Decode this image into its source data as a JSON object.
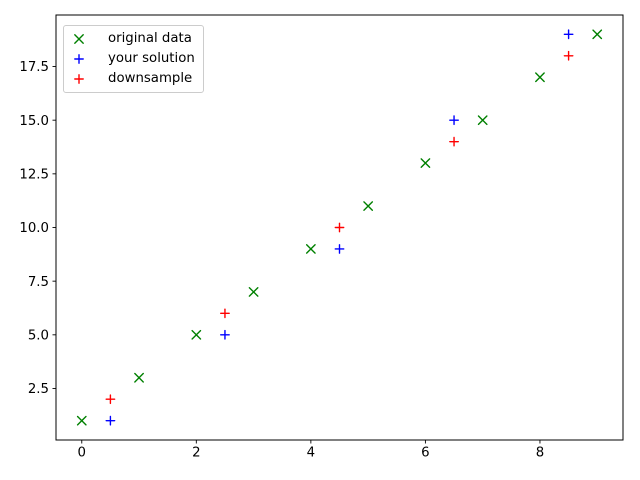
{
  "chart_data": {
    "type": "scatter",
    "title": "",
    "xlabel": "",
    "ylabel": "",
    "grid": false,
    "legend_position": "upper left",
    "xlim": [
      -0.45,
      9.45
    ],
    "ylim": [
      0.1,
      19.9
    ],
    "xticks": [
      0,
      2,
      4,
      6,
      8
    ],
    "xtick_labels": [
      "0",
      "2",
      "4",
      "6",
      "8"
    ],
    "yticks": [
      2.5,
      5.0,
      7.5,
      10.0,
      12.5,
      15.0,
      17.5
    ],
    "ytick_labels": [
      "2.5",
      "5.0",
      "7.5",
      "10.0",
      "12.5",
      "15.0",
      "17.5"
    ],
    "series": [
      {
        "name": "original data",
        "marker": "x",
        "color": "#008000",
        "points": [
          [
            0,
            1
          ],
          [
            1,
            3
          ],
          [
            2,
            5
          ],
          [
            3,
            7
          ],
          [
            4,
            9
          ],
          [
            5,
            11
          ],
          [
            6,
            13
          ],
          [
            7,
            15
          ],
          [
            8,
            17
          ],
          [
            9,
            19
          ]
        ]
      },
      {
        "name": "your solution",
        "marker": "+",
        "color": "#0000ff",
        "points": [
          [
            0.5,
            1
          ],
          [
            2.5,
            5
          ],
          [
            4.5,
            9
          ],
          [
            6.5,
            15
          ],
          [
            8.5,
            19
          ]
        ]
      },
      {
        "name": "downsample",
        "marker": "+",
        "color": "#ff0000",
        "points": [
          [
            0.5,
            2
          ],
          [
            2.5,
            6
          ],
          [
            4.5,
            10
          ],
          [
            6.5,
            14
          ],
          [
            8.5,
            18
          ]
        ]
      }
    ],
    "colors": {
      "axes": "#000000",
      "tick_label": "#000000",
      "background": "#ffffff",
      "legend_border": "#cccccc"
    }
  }
}
